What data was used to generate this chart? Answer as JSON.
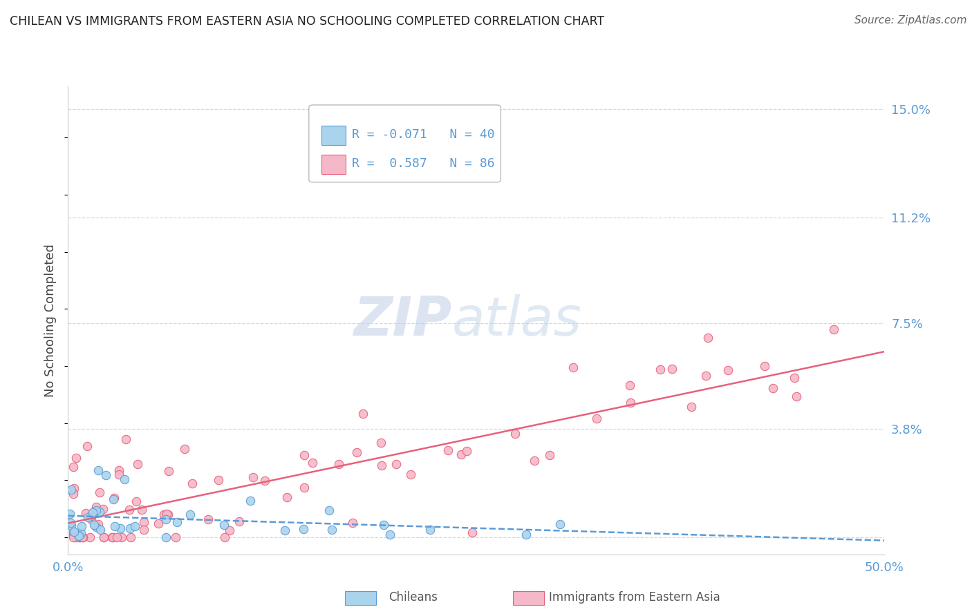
{
  "title": "CHILEAN VS IMMIGRANTS FROM EASTERN ASIA NO SCHOOLING COMPLETED CORRELATION CHART",
  "source": "Source: ZipAtlas.com",
  "ylabel": "No Schooling Completed",
  "xlim": [
    0.0,
    0.5
  ],
  "ylim": [
    -0.006,
    0.158
  ],
  "yticks_right": [
    0.0,
    0.038,
    0.075,
    0.112,
    0.15
  ],
  "ytick_labels_right": [
    "",
    "3.8%",
    "7.5%",
    "11.2%",
    "15.0%"
  ],
  "R_chilean": -0.071,
  "N_chilean": 40,
  "R_eastern": 0.587,
  "N_eastern": 86,
  "color_chilean_fill": "#aad4ed",
  "color_chilean_edge": "#5b9bd5",
  "color_eastern_fill": "#f5b8c8",
  "color_eastern_edge": "#e8607a",
  "line_color_chilean": "#5b9bd5",
  "line_color_eastern": "#e8607a",
  "label_color": "#5b9bd5",
  "background_color": "#ffffff",
  "grid_color": "#d0d8ea"
}
